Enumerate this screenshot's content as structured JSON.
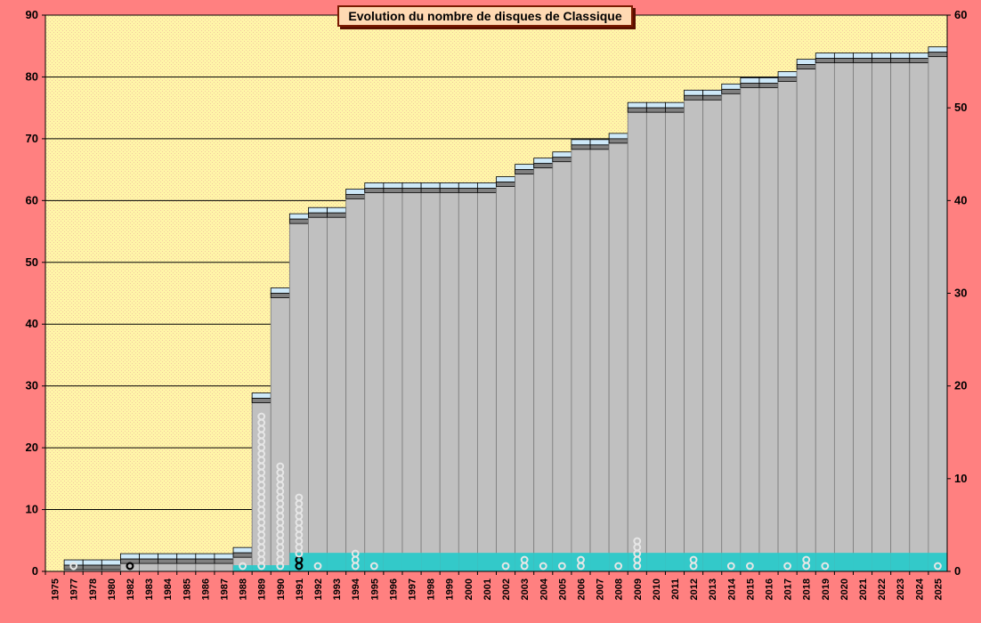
{
  "chart_data": {
    "type": "bar",
    "title": "Evolution du nombre de disques de Classique",
    "xlabel": "",
    "ylabel": "",
    "ylim_left": [
      0,
      90
    ],
    "ylim_right": [
      0,
      60
    ],
    "yticks_left": [
      "0",
      "10",
      "20",
      "30",
      "40",
      "50",
      "60",
      "70",
      "80",
      "90"
    ],
    "yticks_right": [
      "0",
      "10",
      "20",
      "30",
      "40",
      "50",
      "60"
    ],
    "grid": true,
    "categories": [
      "1975",
      "1977",
      "1978",
      "1980",
      "1982",
      "1983",
      "1984",
      "1985",
      "1986",
      "1987",
      "1988",
      "1989",
      "1990",
      "1991",
      "1992",
      "1993",
      "1994",
      "1995",
      "1996",
      "1997",
      "1998",
      "1999",
      "2000",
      "2001",
      "2002",
      "2003",
      "2004",
      "2005",
      "2006",
      "2007",
      "2008",
      "2009",
      "2010",
      "2011",
      "2012",
      "2013",
      "2014",
      "2015",
      "2016",
      "2017",
      "2018",
      "2019",
      "2020",
      "2021",
      "2022",
      "2023",
      "2024",
      "2025"
    ],
    "series": [
      {
        "values": [
          0,
          1,
          1,
          1,
          2,
          2,
          2,
          2,
          2,
          2,
          3,
          28,
          45,
          57,
          58,
          58,
          61,
          62,
          62,
          62,
          62,
          62,
          62,
          62,
          63,
          65,
          66,
          67,
          69,
          69,
          70,
          75,
          75,
          75,
          77,
          77,
          78,
          79,
          79,
          80,
          82,
          83,
          83,
          83,
          83,
          83,
          83,
          84
        ]
      },
      {
        "values": [
          0,
          0,
          0,
          0,
          0,
          0,
          0,
          0,
          0,
          0,
          1,
          1,
          1,
          3,
          3,
          3,
          3,
          3,
          3,
          3,
          3,
          3,
          3,
          3,
          3,
          3,
          3,
          3,
          3,
          3,
          3,
          3,
          3,
          3,
          3,
          3,
          3,
          3,
          3,
          3,
          3,
          3,
          3,
          3,
          3,
          3,
          3,
          3
        ]
      },
      {
        "values": [
          0,
          1,
          0,
          0,
          1,
          0,
          0,
          0,
          0,
          0,
          1,
          25,
          17,
          12,
          1,
          0,
          3,
          1,
          0,
          0,
          0,
          0,
          0,
          0,
          1,
          2,
          1,
          1,
          2,
          0,
          1,
          5,
          0,
          0,
          2,
          0,
          1,
          1,
          0,
          1,
          2,
          1,
          0,
          0,
          0,
          0,
          0,
          1
        ]
      }
    ],
    "colors": {
      "background": "#ff8080",
      "plot_area": "#fff5a8",
      "plot_dots": "#f2c9a0",
      "cumulative_fill": "#c0c0c0",
      "cap_fill": "#cde8f8",
      "cap_band": "#808080",
      "teal_fill": "#33c9c9",
      "marker": "#e6e6e6",
      "marker_dark": "#000000"
    }
  }
}
